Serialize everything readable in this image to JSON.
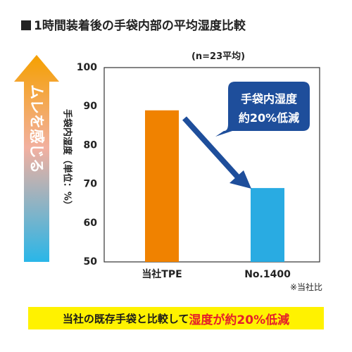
{
  "title": "1時間装着後の手袋内部の平均湿度比較",
  "sample_note": "(n=23平均)",
  "side_arrow_text": "ムレを感じる",
  "footnote": "※当社比",
  "callout": {
    "line1": "手袋内湿度",
    "line2": "約20%低減"
  },
  "banner": {
    "normal": "当社の既存手袋と比較して",
    "highlight": "湿度が約20%低減"
  },
  "colors": {
    "bar_tpe": "#f08200",
    "bar_no1400": "#29abe2",
    "callout_bg": "#1e4e9b",
    "diag_arrow": "#1e4e9b",
    "side_arrow_top": "#f5a000",
    "side_arrow_bottom": "#29b6e8",
    "banner_bg": "#fff200",
    "banner_highlight": "#e51e2a"
  },
  "chart_data": {
    "type": "bar",
    "categories": [
      "当社TPE",
      "No.1400"
    ],
    "values": [
      89,
      69
    ],
    "ylabel": "手袋内湿度（単位：%）",
    "ylim": [
      50,
      100
    ],
    "yticks": [
      "50",
      "60",
      "70",
      "80",
      "90",
      "100"
    ],
    "grid": false,
    "legend": "none"
  }
}
